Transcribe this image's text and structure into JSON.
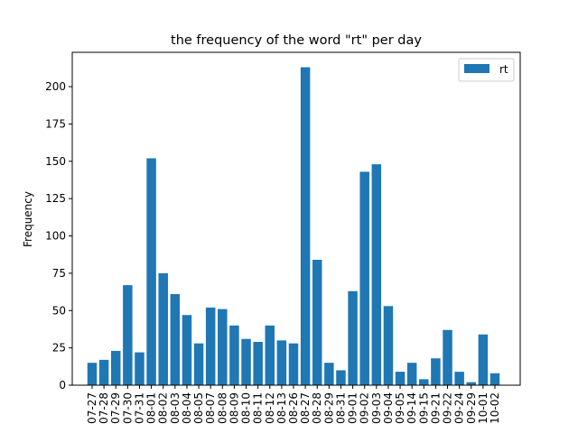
{
  "chart_data": {
    "type": "bar",
    "title": "the frequency of the word \"rt\" per day",
    "xlabel": "",
    "ylabel": "Frequency",
    "ylim": [
      0,
      223
    ],
    "yticks": [
      0,
      25,
      50,
      75,
      100,
      125,
      150,
      175,
      200
    ],
    "grid": false,
    "legend_position": "top-right",
    "categories": [
      "07-27",
      "07-28",
      "07-29",
      "07-30",
      "07-31",
      "08-01",
      "08-02",
      "08-03",
      "08-04",
      "08-05",
      "08-07",
      "08-08",
      "08-09",
      "08-10",
      "08-11",
      "08-12",
      "08-13",
      "08-26",
      "08-27",
      "08-28",
      "08-29",
      "08-31",
      "09-01",
      "09-02",
      "09-03",
      "09-04",
      "09-05",
      "09-14",
      "09-15",
      "09-21",
      "09-22",
      "09-24",
      "09-29",
      "10-01",
      "10-02"
    ],
    "series": [
      {
        "name": "rt",
        "color": "#1f77b4",
        "values": [
          15,
          17,
          23,
          67,
          22,
          152,
          75,
          61,
          47,
          28,
          52,
          51,
          40,
          31,
          29,
          40,
          30,
          28,
          213,
          84,
          15,
          10,
          63,
          143,
          148,
          53,
          9,
          15,
          4,
          18,
          37,
          9,
          2,
          34,
          8
        ]
      }
    ]
  }
}
